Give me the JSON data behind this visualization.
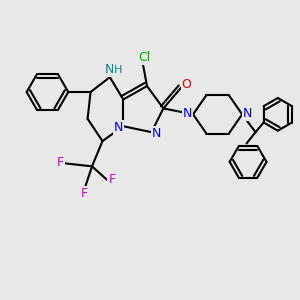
{
  "bg_color": "#e8e8e8",
  "bond_color": "#000000",
  "bond_width": 1.5,
  "font_size": 9,
  "colors": {
    "N": "#0000ee",
    "O": "#dd0000",
    "Cl": "#00aa00",
    "F": "#cc00cc",
    "NH": "#008888",
    "C": "#000000"
  },
  "xlim": [
    0,
    10
  ],
  "ylim": [
    0,
    10
  ]
}
